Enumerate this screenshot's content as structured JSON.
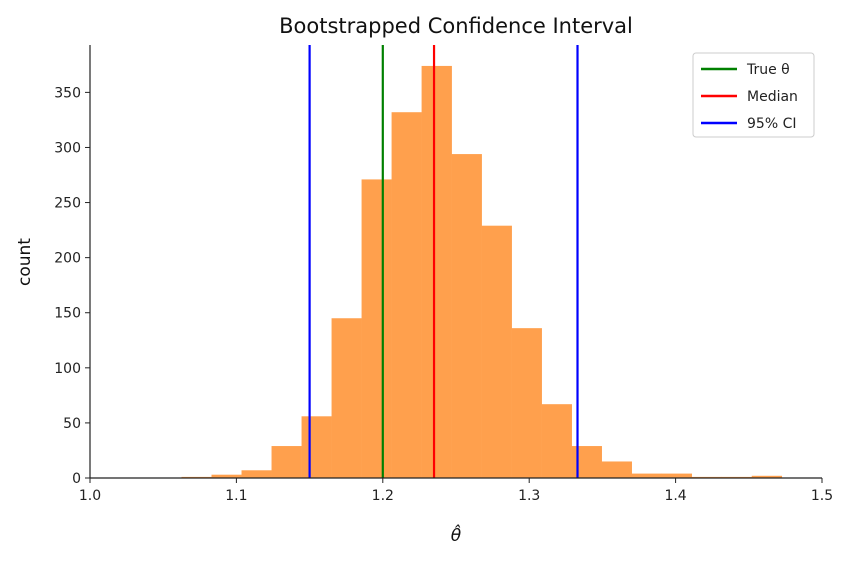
{
  "chart_data": {
    "type": "bar",
    "title": "Bootstrapped Confidence Interval",
    "xlabel": "θ̂",
    "ylabel": "count",
    "xlim": [
      1.0,
      1.5
    ],
    "ylim": [
      0,
      393
    ],
    "xticks": [
      "1.0",
      "1.1",
      "1.2",
      "1.3",
      "1.4",
      "1.5"
    ],
    "xtick_values": [
      1.0,
      1.1,
      1.2,
      1.3,
      1.4,
      1.5
    ],
    "yticks": [
      "0",
      "50",
      "100",
      "150",
      "200",
      "250",
      "300",
      "350"
    ],
    "ytick_values": [
      0,
      50,
      100,
      150,
      200,
      250,
      300,
      350
    ],
    "bar_color": "#ffa04d",
    "bins": [
      {
        "x0": 1.0625,
        "x1": 1.083,
        "value": 1
      },
      {
        "x0": 1.083,
        "x1": 1.1035,
        "value": 3
      },
      {
        "x0": 1.1035,
        "x1": 1.124,
        "value": 7
      },
      {
        "x0": 1.124,
        "x1": 1.1445,
        "value": 29
      },
      {
        "x0": 1.1445,
        "x1": 1.165,
        "value": 56
      },
      {
        "x0": 1.165,
        "x1": 1.1855,
        "value": 145
      },
      {
        "x0": 1.1855,
        "x1": 1.206,
        "value": 271
      },
      {
        "x0": 1.206,
        "x1": 1.2265,
        "value": 332
      },
      {
        "x0": 1.2265,
        "x1": 1.247,
        "value": 374
      },
      {
        "x0": 1.247,
        "x1": 1.2675,
        "value": 294
      },
      {
        "x0": 1.2675,
        "x1": 1.288,
        "value": 229
      },
      {
        "x0": 1.288,
        "x1": 1.3085,
        "value": 136
      },
      {
        "x0": 1.3085,
        "x1": 1.329,
        "value": 67
      },
      {
        "x0": 1.329,
        "x1": 1.3495,
        "value": 29
      },
      {
        "x0": 1.3495,
        "x1": 1.37,
        "value": 15
      },
      {
        "x0": 1.37,
        "x1": 1.3905,
        "value": 4
      },
      {
        "x0": 1.3905,
        "x1": 1.411,
        "value": 4
      },
      {
        "x0": 1.411,
        "x1": 1.4315,
        "value": 1
      },
      {
        "x0": 1.4315,
        "x1": 1.452,
        "value": 1
      },
      {
        "x0": 1.452,
        "x1": 1.4725,
        "value": 2
      }
    ],
    "vlines": [
      {
        "name": "True θ",
        "x": 1.2,
        "color": "#008000"
      },
      {
        "name": "Median",
        "x": 1.235,
        "color": "#ff0000"
      },
      {
        "name": "95% CI",
        "x": 1.15,
        "color": "#0000ff"
      },
      {
        "name": "95% CI",
        "x": 1.333,
        "color": "#0000ff"
      }
    ],
    "legend": {
      "placement": "top-right",
      "entries": [
        {
          "label": "True θ",
          "color": "#008000"
        },
        {
          "label": "Median",
          "color": "#ff0000"
        },
        {
          "label": "95% CI",
          "color": "#0000ff"
        }
      ]
    },
    "grid": false
  }
}
